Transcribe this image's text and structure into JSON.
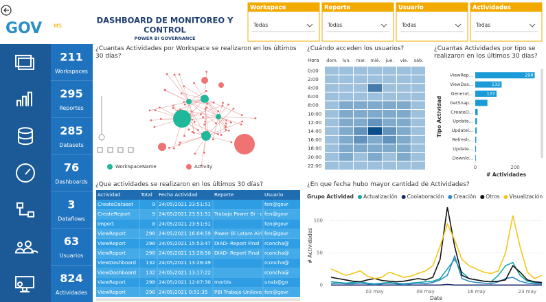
{
  "header": {
    "title_line1": "DASHBOARD DE MONITOREO Y",
    "title_line2": "CONTROL",
    "subtitle": "POWER BI GOVERNANCE",
    "logo": "GOV",
    "logo_suffix": "MS"
  },
  "filters": [
    {
      "label": "Workspace",
      "value": "Todas"
    },
    {
      "label": "Reporte",
      "value": "Todas"
    },
    {
      "label": "Usuario",
      "value": "Todas"
    },
    {
      "label": "Actividades",
      "value": "Todas"
    }
  ],
  "kpis": [
    {
      "value": 211,
      "label": "Workspaces"
    },
    {
      "value": 295,
      "label": "Reportes"
    },
    {
      "value": 285,
      "label": "Datasets"
    },
    {
      "value": 76,
      "label": "Dashboards"
    },
    {
      "value": 3,
      "label": "Dataflows"
    },
    {
      "value": 63,
      "label": "Usuarios"
    },
    {
      "value": 824,
      "label": "Actividades"
    }
  ],
  "network": {
    "title": "¿Cuantas Actividades por Workspace se realizaron en los últimos 30 días?",
    "legend": [
      {
        "name": "WorkSpaceName",
        "color": "#1fb89a"
      },
      {
        "name": "Activity",
        "color": "#f07373"
      }
    ]
  },
  "table": {
    "title": "¿Que actividades se realizaron en los últimos 30 días?",
    "columns": [
      "Actividad",
      "Total",
      "Fecha Actividad",
      "Reporte",
      "Usuario"
    ],
    "rows": [
      [
        "CreateDataset",
        9,
        "24/05/2021 23:51:51",
        null,
        "fen@govr"
      ],
      [
        "CreateReport",
        9,
        "24/05/2021 23:51:51",
        "Trabajo Power Bi - copia",
        "fen@govr"
      ],
      [
        "Import",
        8,
        "24/05/2021 23:51:51",
        null,
        "fen@govr"
      ],
      [
        "ViewReport",
        298,
        "24/05/2021 16:04:59",
        "Power Bi Latam Airlines Grupo 2",
        "fen@govr"
      ],
      [
        "ViewReport",
        298,
        "24/05/2021 15:53:47",
        "DIAD- Report Final",
        "rconcha@"
      ],
      [
        "ViewReport",
        298,
        "24/05/2021 13:28:50",
        "DIAD- Report Final",
        "rconcha@"
      ],
      [
        "ViewDashboard",
        132,
        "24/05/2021 13:28:49",
        null,
        "rconcha@"
      ],
      [
        "ViewDashboard",
        132,
        "24/05/2021 13:17:22",
        null,
        "rconcha@"
      ],
      [
        "ViewReport",
        298,
        "24/05/2021 12:07:30",
        "morbis",
        "unab@go"
      ],
      [
        "ViewReport",
        298,
        "24/05/2021 0:51:35",
        "PBI Trabajo Unilever Grupo 2",
        "fen@govr"
      ]
    ]
  },
  "chart_data": [
    {
      "type": "heatmap",
      "title": "¿Cuándo acceden los usuarios?",
      "corner": "Hora",
      "columns": [
        "dom.",
        "lun.",
        "mar.",
        "mié.",
        "jue.",
        "vie.",
        "sáb."
      ],
      "rows": [
        "0:00",
        "2:00",
        "4:00",
        "6:00",
        "8:00",
        "10:00",
        "12:00",
        "14:00",
        "16:00",
        "18:00",
        "20:00",
        "22:00"
      ],
      "values": [
        [
          1,
          1,
          1,
          1,
          1,
          1,
          1
        ],
        [
          1,
          1,
          1,
          1,
          1,
          1,
          1
        ],
        [
          1,
          1,
          1,
          4,
          1,
          1,
          1
        ],
        [
          1,
          1,
          1,
          1,
          1,
          1,
          1
        ],
        [
          1,
          2,
          2,
          2,
          2,
          2,
          1
        ],
        [
          1,
          2,
          2,
          2,
          2,
          2,
          1
        ],
        [
          1,
          2,
          2,
          3,
          2,
          2,
          1
        ],
        [
          1,
          2,
          3,
          6,
          3,
          2,
          1
        ],
        [
          1,
          2,
          3,
          2,
          3,
          2,
          1
        ],
        [
          1,
          2,
          2,
          2,
          2,
          2,
          1
        ],
        [
          1,
          2,
          1,
          2,
          1,
          2,
          1
        ],
        [
          1,
          1,
          1,
          1,
          1,
          1,
          1
        ]
      ],
      "color": "#0b4f8a"
    },
    {
      "type": "bar",
      "orientation": "horizontal",
      "title": "¿Cuantas Actividades por tipo se realizaron en los últimos 30 días?",
      "categories": [
        "ViewRep...",
        "ViewDas...",
        "Generat...",
        "GetSnap...",
        "CreateD...",
        "Update...",
        "Updatel...",
        "Refresh...",
        "Update...",
        "Downlo..."
      ],
      "values": [
        298,
        132,
        107,
        61,
        12,
        9,
        7,
        5,
        4,
        3
      ],
      "color": "#1a9bd7",
      "xlim": [
        0,
        310
      ],
      "xticks": [
        0,
        200
      ],
      "xlabel": "# Actividades",
      "ylabel": "Tipo Actividad"
    },
    {
      "type": "line",
      "title": "¿En que fecha hubo mayor cantidad de Actividades?",
      "legend_title": "Grupo Actividad",
      "categories": [
        null,
        null,
        null,
        null,
        null,
        null,
        "02 may",
        null,
        null,
        null,
        null,
        null,
        null,
        "09 may",
        null,
        null,
        null,
        null,
        null,
        null,
        "16 may",
        null,
        null,
        null,
        null,
        null,
        null,
        "23 may",
        null,
        null
      ],
      "series": [
        {
          "name": "Actualización",
          "color": "#1aa3a3",
          "values": [
            5,
            4,
            3,
            4,
            5,
            3,
            2,
            3,
            4,
            3,
            2,
            3,
            4,
            5,
            6,
            10,
            25,
            40,
            20,
            10,
            8,
            6,
            5,
            15,
            30,
            35,
            15,
            6,
            4,
            3
          ]
        },
        {
          "name": "Coolaboración",
          "color": "#1c2a6b",
          "values": [
            0,
            0,
            0,
            0,
            0,
            0,
            0,
            0,
            0,
            0,
            0,
            0,
            0,
            0,
            0,
            0,
            1,
            0,
            0,
            0,
            0,
            0,
            0,
            0,
            0,
            0,
            0,
            0,
            0,
            0
          ]
        },
        {
          "name": "Creación",
          "color": "#2e8bc9",
          "values": [
            2,
            3,
            2,
            2,
            3,
            2,
            1,
            2,
            3,
            2,
            1,
            2,
            3,
            2,
            4,
            8,
            15,
            45,
            10,
            6,
            4,
            3,
            2,
            5,
            10,
            12,
            6,
            3,
            2,
            2
          ]
        },
        {
          "name": "Otros",
          "color": "#111111",
          "values": [
            12,
            10,
            8,
            6,
            5,
            8,
            10,
            7,
            6,
            5,
            6,
            8,
            10,
            8,
            12,
            40,
            121,
            60,
            15,
            10,
            8,
            6,
            5,
            6,
            8,
            30,
            20,
            8,
            5,
            4
          ]
        },
        {
          "name": "Visualización",
          "color": "#f5c518",
          "values": [
            25,
            20,
            15,
            18,
            22,
            14,
            10,
            12,
            20,
            16,
            12,
            14,
            18,
            22,
            30,
            60,
            95,
            70,
            40,
            30,
            25,
            20,
            18,
            22,
            50,
            108,
            60,
            20,
            10,
            15
          ]
        }
      ],
      "ylim": [
        -5,
        125
      ],
      "yticks": [
        0,
        50,
        100
      ],
      "xlabel": "Date",
      "ylabel": "# Actividades"
    }
  ]
}
